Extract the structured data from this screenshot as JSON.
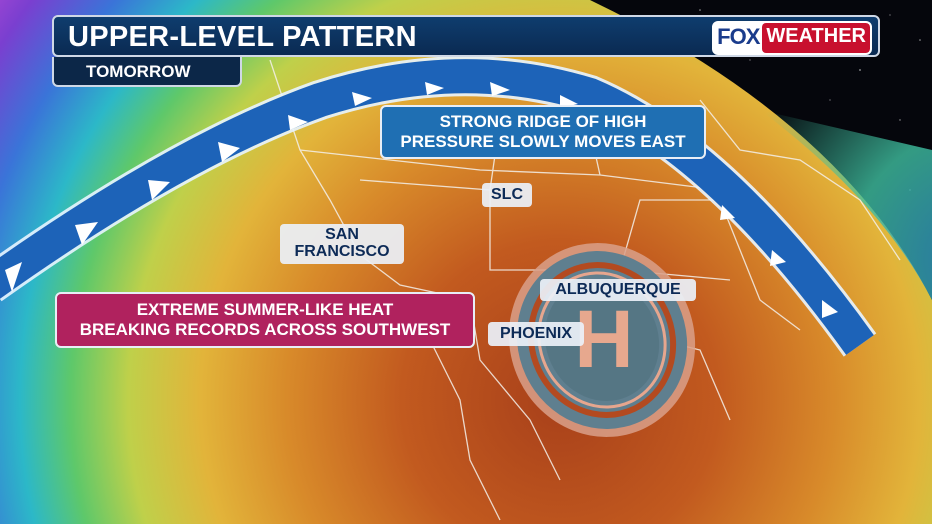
{
  "header": {
    "title": "UPPER-LEVEL PATTERN",
    "subtitle": "TOMORROW"
  },
  "logo": {
    "part1": "FOX",
    "part2": "WEATHER"
  },
  "callouts": {
    "ridge": [
      "STRONG RIDGE OF HIGH",
      "PRESSURE SLOWLY MOVES EAST"
    ],
    "heat": [
      "EXTREME SUMMER-LIKE HEAT",
      "BREAKING RECORDS ACROSS SOUTHWEST"
    ]
  },
  "cities": {
    "slc": "SLC",
    "sf1": "SAN",
    "sf2": "FRANCISCO",
    "albuquerque": "ALBUQUERQUE",
    "phoenix": "PHOENIX"
  },
  "high_pressure": {
    "symbol": "H"
  },
  "colors": {
    "ridge_callout": "#1f6fb3",
    "heat_callout": "#b0225e",
    "jet_stream": "#1d63b8",
    "header": "#0f3d6e"
  }
}
